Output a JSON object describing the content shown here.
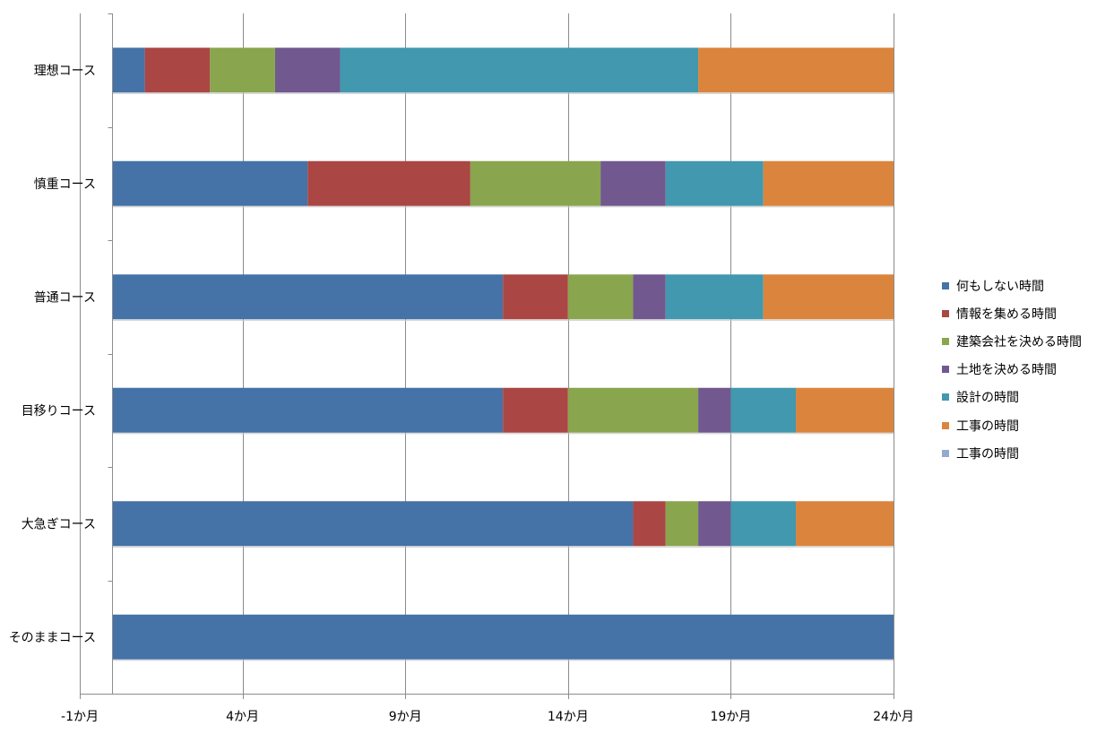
{
  "chart_data": {
    "type": "bar",
    "orientation": "horizontal",
    "stacked": true,
    "categories": [
      "理想コース",
      "慎重コース",
      "普通コース",
      "目移りコース",
      "大急ぎコース",
      "そのままコース"
    ],
    "series": [
      {
        "name": "何もしない時間",
        "color": "#4572a7",
        "values": [
          1,
          6,
          12,
          12,
          16,
          24
        ]
      },
      {
        "name": "情報を集める時間",
        "color": "#aa4643",
        "values": [
          2,
          5,
          2,
          2,
          1,
          0
        ]
      },
      {
        "name": "建築会社を決める時間",
        "color": "#89a54e",
        "values": [
          2,
          4,
          2,
          4,
          1,
          0
        ]
      },
      {
        "name": "土地を決める時間",
        "color": "#71588f",
        "values": [
          2,
          2,
          1,
          1,
          1,
          0
        ]
      },
      {
        "name": "設計の時間",
        "color": "#4198af",
        "values": [
          11,
          3,
          3,
          2,
          2,
          0
        ]
      },
      {
        "name": "工事の時間",
        "color": "#db843d",
        "values": [
          6,
          4,
          4,
          3,
          3,
          0
        ]
      },
      {
        "name": "工事の時間",
        "color": "#93a9cf",
        "values": [
          0,
          0,
          0,
          0,
          0,
          0
        ]
      }
    ],
    "xlim": [
      -1,
      24
    ],
    "x_ticks": [
      -1,
      4,
      9,
      14,
      19,
      24
    ],
    "x_tick_labels": [
      "-1か月",
      "4か月",
      "9か月",
      "14か月",
      "19か月",
      "24か月"
    ],
    "title": "",
    "xlabel": "",
    "ylabel": "",
    "grid": true,
    "legend_position": "right"
  }
}
